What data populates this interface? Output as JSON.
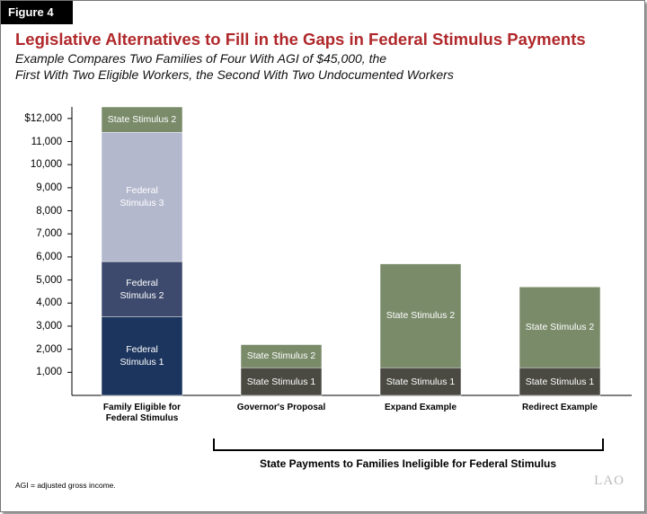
{
  "chart_data": {
    "type": "stacked_bar",
    "figure_label": "Figure 4",
    "title": "Legislative Alternatives to Fill in the Gaps in Federal Stimulus Payments",
    "subtitle": [
      "Example Compares Two Families of Four With AGI of $45,000, the",
      "First With Two Eligible Workers, the Second With Two Undocumented Workers"
    ],
    "categories": [
      "Family Eligible for Federal Stimulus",
      "Governor's Proposal",
      "Expand Example",
      "Redirect Example"
    ],
    "series": [
      {
        "name": "Federal Stimulus 1",
        "color": "#1c355e",
        "values": [
          3400,
          null,
          null,
          null
        ]
      },
      {
        "name": "Federal Stimulus 2",
        "color": "#3d4a6d",
        "values": [
          2400,
          null,
          null,
          null
        ]
      },
      {
        "name": "Federal Stimulus 3",
        "color": "#b4b8cd",
        "values": [
          5600,
          null,
          null,
          null
        ]
      },
      {
        "name": "State Stimulus 1",
        "color": "#4a4a42",
        "values": [
          null,
          1200,
          1200,
          1200
        ]
      },
      {
        "name": "State Stimulus 2",
        "color": "#7a8b6a",
        "values": [
          1100,
          1000,
          4500,
          3500
        ]
      }
    ],
    "ylim": [
      0,
      12500
    ],
    "yticks": [
      {
        "value": 1000,
        "label": "1,000"
      },
      {
        "value": 2000,
        "label": "2,000"
      },
      {
        "value": 3000,
        "label": "3,000"
      },
      {
        "value": 4000,
        "label": "4,000"
      },
      {
        "value": 5000,
        "label": "5,000"
      },
      {
        "value": 6000,
        "label": "6,000"
      },
      {
        "value": 7000,
        "label": "7,000"
      },
      {
        "value": 8000,
        "label": "8,000"
      },
      {
        "value": 9000,
        "label": "9,000"
      },
      {
        "value": 10000,
        "label": "10,000"
      },
      {
        "value": 11000,
        "label": "11,000"
      },
      {
        "value": 12000,
        "label": "$12,000"
      }
    ],
    "grid": false,
    "bracket_label": "State Payments to Families Ineligible for Federal Stimulus",
    "footnote": "AGI = adjusted gross income.",
    "logo": "LAO"
  }
}
